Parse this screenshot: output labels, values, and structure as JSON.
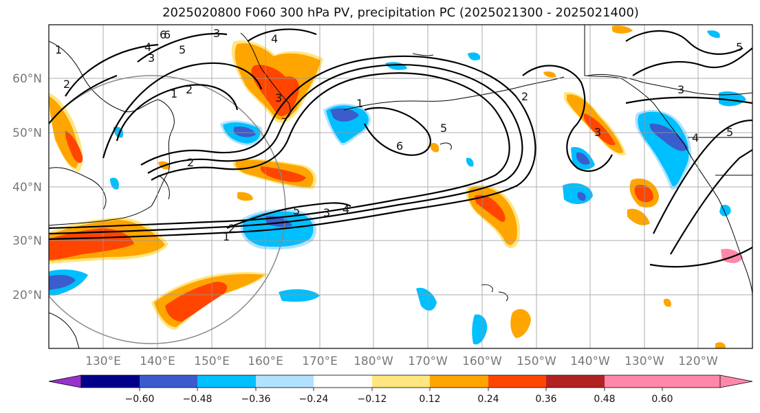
{
  "title": "2025020800 F060 300 hPa PV, precipitation PC (2025021300 - 2025021400)",
  "lat_labels": [
    "60°N",
    "50°N",
    "40°N",
    "30°N",
    "20°N"
  ],
  "lon_labels": [
    "130°E",
    "140°E",
    "150°E",
    "160°E",
    "170°E",
    "180°W",
    "170°W",
    "160°W",
    "150°W",
    "140°W",
    "130°W",
    "120°W"
  ],
  "colorbar": {
    "colors": [
      "#9932cc",
      "#00008b",
      "#3a5ccc",
      "#00bfff",
      "#b0e2ff",
      "#ffffff",
      "#ffe680",
      "#ffa500",
      "#ff4500",
      "#b22222",
      "#ff88aa"
    ],
    "tick_labels": [
      "−0.60",
      "−0.48",
      "−0.36",
      "−0.24",
      "−0.12",
      "0.12",
      "0.24",
      "0.36",
      "0.48",
      "0.60"
    ]
  },
  "contour_labels": [
    "1",
    "2",
    "3",
    "4",
    "5",
    "6",
    "3",
    "2",
    "1",
    "6",
    "5",
    "4",
    "3",
    "2",
    "1",
    "6",
    "5",
    "4",
    "2",
    "1",
    "3",
    "2",
    "3",
    "5",
    "3",
    "4",
    "5"
  ],
  "colors": {
    "positive_light": "#ffe680",
    "positive_mid": "#ffa500",
    "positive_strong": "#ff4500",
    "negative_light": "#b0e2ff",
    "negative_mid": "#00bfff",
    "negative_strong": "#3a5ccc",
    "negative_deep": "#00008b"
  }
}
